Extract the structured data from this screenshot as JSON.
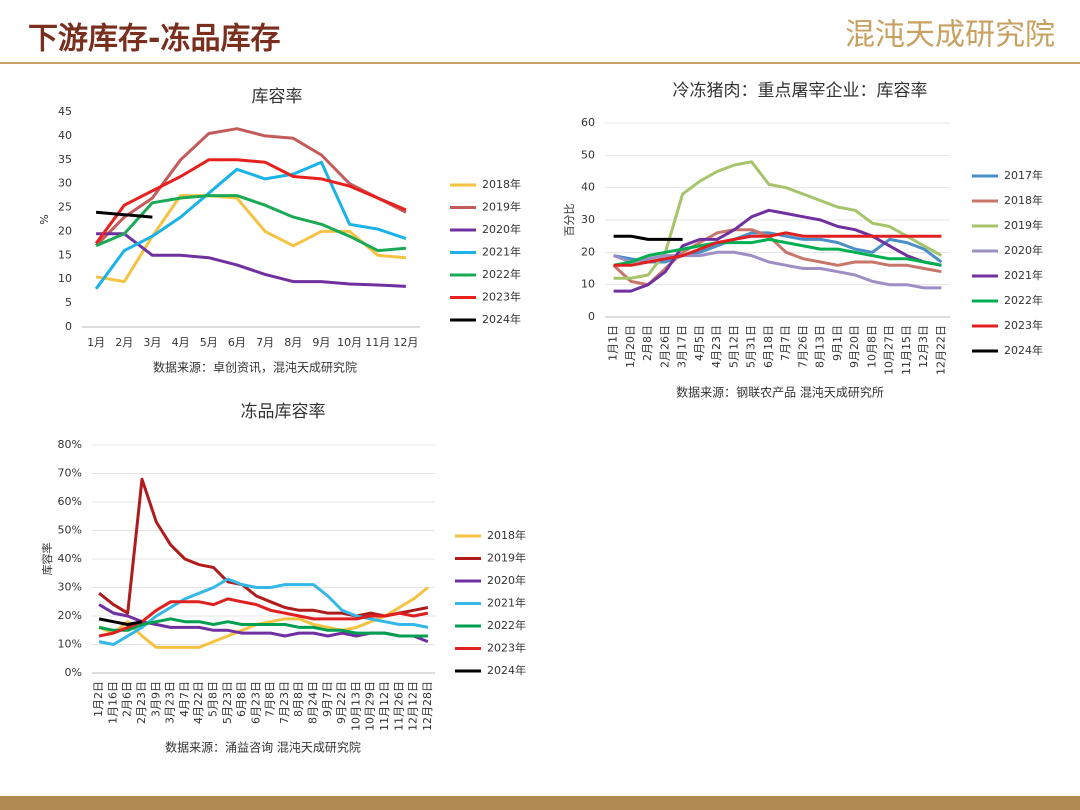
{
  "header": {
    "title": "下游库存-冻品库存",
    "logo": "混沌天成研究院"
  },
  "chart_data": [
    {
      "type": "line",
      "title": "库容率",
      "y_label": "%",
      "source": "数据来源：卓创资讯，混沌天成研究院",
      "categories": [
        "1月",
        "2月",
        "3月",
        "4月",
        "5月",
        "6月",
        "7月",
        "8月",
        "9月",
        "10月",
        "11月",
        "12月"
      ],
      "ylim": [
        0,
        45
      ],
      "yticks": [
        0,
        5,
        10,
        15,
        20,
        25,
        30,
        35,
        40,
        45
      ],
      "series": [
        {
          "name": "2018年",
          "color": "#f5c242",
          "values": [
            10.5,
            9.5,
            19,
            27.5,
            27.5,
            27,
            20,
            17,
            20,
            20,
            15,
            14.5
          ]
        },
        {
          "name": "2019年",
          "color": "#c55a5a",
          "values": [
            17,
            23,
            27,
            35,
            40.5,
            41.5,
            40,
            39.5,
            36,
            30,
            27,
            24
          ]
        },
        {
          "name": "2020年",
          "color": "#7030a0",
          "values": [
            19.5,
            19.5,
            15,
            15,
            14.5,
            13,
            11,
            9.5,
            9.5,
            9,
            8.8,
            8.5
          ]
        },
        {
          "name": "2021年",
          "color": "#1ab2e8",
          "values": [
            8,
            16,
            19,
            23,
            28,
            33,
            31,
            32,
            34.5,
            21.5,
            20.5,
            18.5
          ]
        },
        {
          "name": "2022年",
          "color": "#1aaa55",
          "values": [
            17,
            19.5,
            26,
            27,
            27.5,
            27.5,
            25.5,
            23,
            21.5,
            19,
            16,
            16.5
          ]
        },
        {
          "name": "2023年",
          "color": "#e8201e",
          "values": [
            17.5,
            25.5,
            28.5,
            31.5,
            35,
            35,
            34.5,
            31.5,
            31,
            29.5,
            27,
            24.5
          ]
        },
        {
          "name": "2024年",
          "color": "#000000",
          "values": [
            24,
            23.5,
            23,
            null,
            null,
            null,
            null,
            null,
            null,
            null,
            null,
            null
          ]
        }
      ]
    },
    {
      "type": "line",
      "title": "冷冻猪肉：重点屠宰企业：库容率",
      "y_label": "百分比",
      "source": "数据来源：钢联农产品 混沌天成研究所",
      "categories": [
        "1月1日",
        "1月20日",
        "2月8日",
        "2月26日",
        "3月17日",
        "4月5日",
        "4月23日",
        "5月12日",
        "5月31日",
        "6月18日",
        "7月7日",
        "7月26日",
        "8月13日",
        "9月1日",
        "9月20日",
        "10月8日",
        "10月27日",
        "11月15日",
        "12月3日",
        "12月22日"
      ],
      "ylim": [
        0,
        60
      ],
      "yticks": [
        0,
        10,
        20,
        30,
        40,
        50,
        60
      ],
      "series": [
        {
          "name": "2017年",
          "color": "#4a8fc8",
          "values": [
            19,
            18,
            17,
            17,
            19,
            20,
            22,
            24,
            26,
            26,
            25,
            24,
            24,
            23,
            21,
            20,
            24,
            23,
            21,
            17
          ]
        },
        {
          "name": "2018年",
          "color": "#c8766a",
          "values": [
            16,
            11,
            10,
            15,
            20,
            23,
            26,
            27,
            27,
            25,
            20,
            18,
            17,
            16,
            17,
            17,
            16,
            16,
            15,
            14
          ]
        },
        {
          "name": "2019年",
          "color": "#a6c46a",
          "values": [
            12,
            12,
            13,
            20,
            38,
            42,
            45,
            47,
            48,
            41,
            40,
            38,
            36,
            34,
            33,
            29,
            28,
            25,
            22,
            19
          ]
        },
        {
          "name": "2020年",
          "color": "#9d8fc3",
          "values": [
            19,
            17,
            18,
            19,
            19,
            19,
            20,
            20,
            19,
            17,
            16,
            15,
            15,
            14,
            13,
            11,
            10,
            10,
            9,
            9
          ]
        },
        {
          "name": "2021年",
          "color": "#7030a0",
          "values": [
            8,
            8,
            10,
            14,
            22,
            24,
            24,
            27,
            31,
            33,
            32,
            31,
            30,
            28,
            27,
            25,
            22,
            19,
            17,
            16
          ]
        },
        {
          "name": "2022年",
          "color": "#00b050",
          "values": [
            16,
            17,
            19,
            20,
            21,
            22,
            23,
            23,
            23,
            24,
            23,
            22,
            21,
            21,
            20,
            19,
            18,
            18,
            17,
            16
          ]
        },
        {
          "name": "2023年",
          "color": "#e02020",
          "values": [
            16,
            16,
            17,
            18,
            19,
            21,
            23,
            24,
            25,
            25,
            26,
            25,
            25,
            25,
            25,
            25,
            25,
            25,
            25,
            25
          ]
        },
        {
          "name": "2024年",
          "color": "#000000",
          "values": [
            25,
            25,
            24,
            24,
            24,
            null,
            null,
            null,
            null,
            null,
            null,
            null,
            null,
            null,
            null,
            null,
            null,
            null,
            null,
            null
          ]
        }
      ]
    },
    {
      "type": "line",
      "title": "冻品库容率",
      "y_label": "库容率",
      "source": "数据来源：涌益咨询 混沌天成研究院",
      "categories": [
        "1月2日",
        "1月16日",
        "2月6日",
        "2月23日",
        "3月9日",
        "3月23日",
        "4月7日",
        "4月22日",
        "5月8日",
        "5月23日",
        "6月8日",
        "6月23日",
        "7月8日",
        "7月23日",
        "8月8日",
        "8月24日",
        "9月7日",
        "9月22日",
        "10月13日",
        "10月29日",
        "11月12日",
        "11月26日",
        "12月12日",
        "12月28日"
      ],
      "ylim": [
        0,
        80
      ],
      "yticks": [
        {
          "value": 0,
          "label": "0%"
        },
        {
          "value": 10,
          "label": "10%"
        },
        {
          "value": 20,
          "label": "20%"
        },
        {
          "value": 30,
          "label": "30%"
        },
        {
          "value": 40,
          "label": "40%"
        },
        {
          "value": 50,
          "label": "50%"
        },
        {
          "value": 60,
          "label": "60%"
        },
        {
          "value": 70,
          "label": "70%"
        },
        {
          "value": 80,
          "label": "80%"
        }
      ],
      "series": [
        {
          "name": "2018年",
          "color": "#f5c242",
          "values": [
            16,
            14,
            18,
            13,
            9,
            9,
            9,
            9,
            11,
            13,
            15,
            17,
            18,
            19,
            19,
            17,
            16,
            15,
            16,
            18,
            20,
            23,
            26,
            30
          ]
        },
        {
          "name": "2019年",
          "color": "#b01c1c",
          "values": [
            28,
            24,
            21,
            68,
            53,
            45,
            40,
            38,
            37,
            32,
            31,
            27,
            25,
            23,
            22,
            22,
            21,
            21,
            20,
            21,
            20,
            21,
            22,
            23
          ]
        },
        {
          "name": "2020年",
          "color": "#7030a0",
          "values": [
            24,
            21,
            20,
            18,
            17,
            16,
            16,
            16,
            15,
            15,
            14,
            14,
            14,
            13,
            14,
            14,
            13,
            14,
            13,
            14,
            14,
            13,
            13,
            11
          ]
        },
        {
          "name": "2021年",
          "color": "#33b8e8",
          "values": [
            11,
            10,
            13,
            16,
            20,
            23,
            26,
            28,
            30,
            33,
            31,
            30,
            30,
            31,
            31,
            31,
            27,
            22,
            20,
            19,
            18,
            17,
            17,
            16
          ]
        },
        {
          "name": "2022年",
          "color": "#00a050",
          "values": [
            16,
            15,
            15,
            17,
            18,
            19,
            18,
            18,
            17,
            18,
            17,
            17,
            17,
            17,
            16,
            16,
            15,
            15,
            14,
            14,
            14,
            13,
            13,
            13
          ]
        },
        {
          "name": "2023年",
          "color": "#e02020",
          "values": [
            13,
            14,
            16,
            18,
            22,
            25,
            25,
            25,
            24,
            26,
            25,
            24,
            22,
            21,
            20,
            19,
            19,
            19,
            19,
            20,
            20,
            21,
            20,
            21
          ]
        },
        {
          "name": "2024年",
          "color": "#000000",
          "values": [
            19,
            18,
            17,
            18,
            null,
            null,
            null,
            null,
            null,
            null,
            null,
            null,
            null,
            null,
            null,
            null,
            null,
            null,
            null,
            null,
            null,
            null,
            null,
            null
          ]
        }
      ]
    }
  ]
}
